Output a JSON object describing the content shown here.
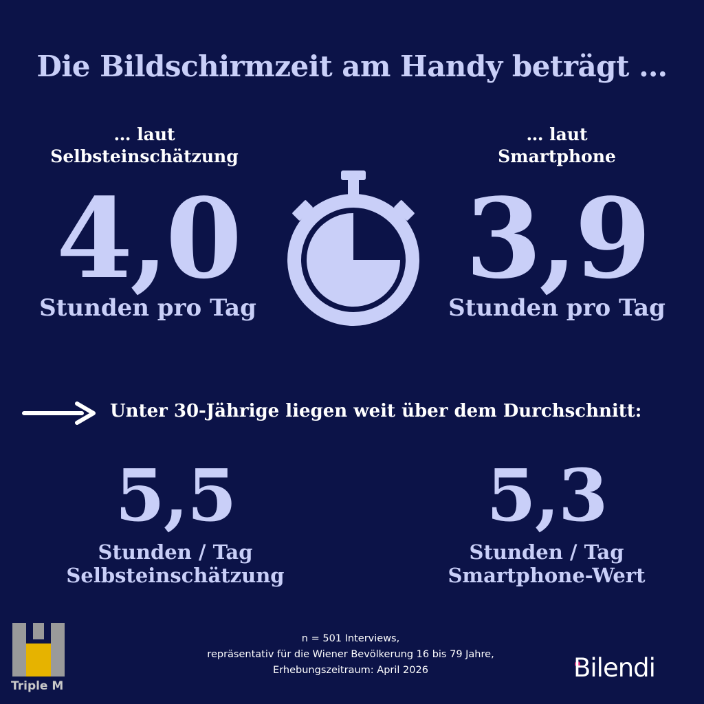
{
  "title": "Die Bildschirmzeit am Handy beträgt …",
  "self": {
    "label_line1": "… laut",
    "label_line2": "Selbsteinschätzung",
    "value": "4,0",
    "unit": "Stunden pro Tag"
  },
  "phone": {
    "label_line1": "… laut",
    "label_line2": "Smartphone",
    "value": "3,9",
    "unit": "Stunden pro Tag"
  },
  "stopwatch_icon": "stopwatch-icon",
  "arrow_icon": "arrow-right-icon",
  "under30": {
    "heading": "Unter 30-Jährige liegen weit über dem Durchschnitt:",
    "self_value": "5,5",
    "self_unit": "Stunden / Tag",
    "self_label": "Selbsteinschätzung",
    "phone_value": "5,3",
    "phone_unit": "Stunden / Tag",
    "phone_label": "Smartphone-Wert"
  },
  "footnote": {
    "line1": "n = 501 Interviews,",
    "line2": "repräsentativ für die Wiener Bevölkerung 16 bis 79 Jahre,",
    "line3": "Erhebungszeitraum: April 2026"
  },
  "logos": {
    "triplem_text": "Triple M",
    "bilendi_text": "Bilendi"
  },
  "colors": {
    "background": "#0c1348",
    "accent": "#c9cff8",
    "bilendi_dot": "#e0287a",
    "triplem_yellow": "#e6b300",
    "triplem_gray": "#9a9a9a"
  }
}
